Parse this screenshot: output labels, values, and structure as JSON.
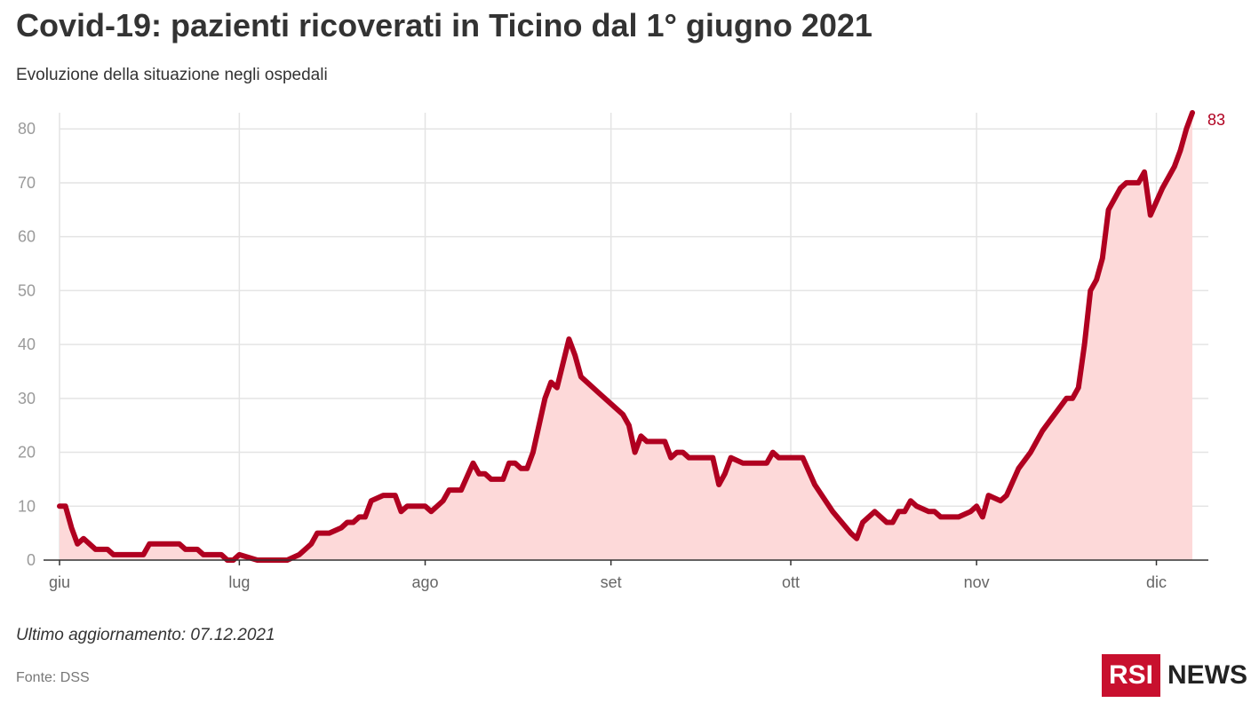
{
  "header": {
    "title": "Covid-19: pazienti ricoverati in Ticino dal 1° giugno 2021",
    "subtitle": "Evoluzione della situazione negli ospedali"
  },
  "footer": {
    "updated": "Ultimo aggiornamento: 07.12.2021",
    "source": "Fonte: DSS"
  },
  "logo": {
    "box_text": "RSI",
    "text": "NEWS"
  },
  "colors": {
    "line": "#b00020",
    "area": "#fdd9d9",
    "grid": "#e4e4e4",
    "axis": "#333333"
  },
  "chart_data": {
    "type": "area",
    "title": "Covid-19: pazienti ricoverati in Ticino dal 1° giugno 2021",
    "subtitle": "Evoluzione della situazione negli ospedali",
    "xlabel": "",
    "ylabel": "",
    "ylim": [
      0,
      83
    ],
    "yticks": [
      0,
      10,
      20,
      30,
      40,
      50,
      60,
      70,
      80
    ],
    "xtick_labels": [
      {
        "label": "giu",
        "date": "2021-06-01"
      },
      {
        "label": "lug",
        "date": "2021-07-01"
      },
      {
        "label": "ago",
        "date": "2021-08-01"
      },
      {
        "label": "set",
        "date": "2021-09-01"
      },
      {
        "label": "ott",
        "date": "2021-10-01"
      },
      {
        "label": "nov",
        "date": "2021-11-01"
      },
      {
        "label": "dic",
        "date": "2021-12-01"
      }
    ],
    "xlim": [
      "2021-06-01",
      "2021-12-07"
    ],
    "grid": true,
    "end_label": "83",
    "series": [
      {
        "points": [
          [
            "2021-06-01",
            10
          ],
          [
            "2021-06-02",
            10
          ],
          [
            "2021-06-03",
            6
          ],
          [
            "2021-06-04",
            3
          ],
          [
            "2021-06-05",
            4
          ],
          [
            "2021-06-07",
            2
          ],
          [
            "2021-06-09",
            2
          ],
          [
            "2021-06-10",
            1
          ],
          [
            "2021-06-15",
            1
          ],
          [
            "2021-06-16",
            3
          ],
          [
            "2021-06-21",
            3
          ],
          [
            "2021-06-22",
            2
          ],
          [
            "2021-06-24",
            2
          ],
          [
            "2021-06-25",
            1
          ],
          [
            "2021-06-28",
            1
          ],
          [
            "2021-06-29",
            0
          ],
          [
            "2021-06-30",
            0
          ],
          [
            "2021-07-01",
            1
          ],
          [
            "2021-07-04",
            0
          ],
          [
            "2021-07-09",
            0
          ],
          [
            "2021-07-11",
            1
          ],
          [
            "2021-07-13",
            3
          ],
          [
            "2021-07-14",
            5
          ],
          [
            "2021-07-16",
            5
          ],
          [
            "2021-07-18",
            6
          ],
          [
            "2021-07-19",
            7
          ],
          [
            "2021-07-20",
            7
          ],
          [
            "2021-07-21",
            8
          ],
          [
            "2021-07-22",
            8
          ],
          [
            "2021-07-23",
            11
          ],
          [
            "2021-07-25",
            12
          ],
          [
            "2021-07-27",
            12
          ],
          [
            "2021-07-28",
            9
          ],
          [
            "2021-07-29",
            10
          ],
          [
            "2021-08-01",
            10
          ],
          [
            "2021-08-02",
            9
          ],
          [
            "2021-08-04",
            11
          ],
          [
            "2021-08-05",
            13
          ],
          [
            "2021-08-07",
            13
          ],
          [
            "2021-08-09",
            18
          ],
          [
            "2021-08-10",
            16
          ],
          [
            "2021-08-11",
            16
          ],
          [
            "2021-08-12",
            15
          ],
          [
            "2021-08-14",
            15
          ],
          [
            "2021-08-15",
            18
          ],
          [
            "2021-08-16",
            18
          ],
          [
            "2021-08-17",
            17
          ],
          [
            "2021-08-18",
            17
          ],
          [
            "2021-08-19",
            20
          ],
          [
            "2021-08-21",
            30
          ],
          [
            "2021-08-22",
            33
          ],
          [
            "2021-08-23",
            32
          ],
          [
            "2021-08-25",
            41
          ],
          [
            "2021-08-26",
            38
          ],
          [
            "2021-08-27",
            34
          ],
          [
            "2021-08-28",
            33
          ],
          [
            "2021-08-30",
            31
          ],
          [
            "2021-09-03",
            27
          ],
          [
            "2021-09-04",
            25
          ],
          [
            "2021-09-05",
            20
          ],
          [
            "2021-09-06",
            23
          ],
          [
            "2021-09-07",
            22
          ],
          [
            "2021-09-10",
            22
          ],
          [
            "2021-09-11",
            19
          ],
          [
            "2021-09-12",
            20
          ],
          [
            "2021-09-13",
            20
          ],
          [
            "2021-09-14",
            19
          ],
          [
            "2021-09-18",
            19
          ],
          [
            "2021-09-19",
            14
          ],
          [
            "2021-09-20",
            16
          ],
          [
            "2021-09-21",
            19
          ],
          [
            "2021-09-23",
            18
          ],
          [
            "2021-09-27",
            18
          ],
          [
            "2021-09-28",
            20
          ],
          [
            "2021-09-29",
            19
          ],
          [
            "2021-10-03",
            19
          ],
          [
            "2021-10-05",
            14
          ],
          [
            "2021-10-08",
            9
          ],
          [
            "2021-10-11",
            5
          ],
          [
            "2021-10-12",
            4
          ],
          [
            "2021-10-13",
            7
          ],
          [
            "2021-10-15",
            9
          ],
          [
            "2021-10-17",
            7
          ],
          [
            "2021-10-18",
            7
          ],
          [
            "2021-10-19",
            9
          ],
          [
            "2021-10-20",
            9
          ],
          [
            "2021-10-21",
            11
          ],
          [
            "2021-10-22",
            10
          ],
          [
            "2021-10-24",
            9
          ],
          [
            "2021-10-25",
            9
          ],
          [
            "2021-10-26",
            8
          ],
          [
            "2021-10-29",
            8
          ],
          [
            "2021-10-31",
            9
          ],
          [
            "2021-11-01",
            10
          ],
          [
            "2021-11-02",
            8
          ],
          [
            "2021-11-03",
            12
          ],
          [
            "2021-11-05",
            11
          ],
          [
            "2021-11-06",
            12
          ],
          [
            "2021-11-08",
            17
          ],
          [
            "2021-11-10",
            20
          ],
          [
            "2021-11-12",
            24
          ],
          [
            "2021-11-16",
            30
          ],
          [
            "2021-11-17",
            30
          ],
          [
            "2021-11-18",
            32
          ],
          [
            "2021-11-19",
            40
          ],
          [
            "2021-11-20",
            50
          ],
          [
            "2021-11-21",
            52
          ],
          [
            "2021-11-22",
            56
          ],
          [
            "2021-11-23",
            65
          ],
          [
            "2021-11-25",
            69
          ],
          [
            "2021-11-26",
            70
          ],
          [
            "2021-11-28",
            70
          ],
          [
            "2021-11-29",
            72
          ],
          [
            "2021-11-30",
            64
          ],
          [
            "2021-12-02",
            69
          ],
          [
            "2021-12-04",
            73
          ],
          [
            "2021-12-05",
            76
          ],
          [
            "2021-12-06",
            80
          ],
          [
            "2021-12-07",
            83
          ]
        ]
      }
    ]
  }
}
